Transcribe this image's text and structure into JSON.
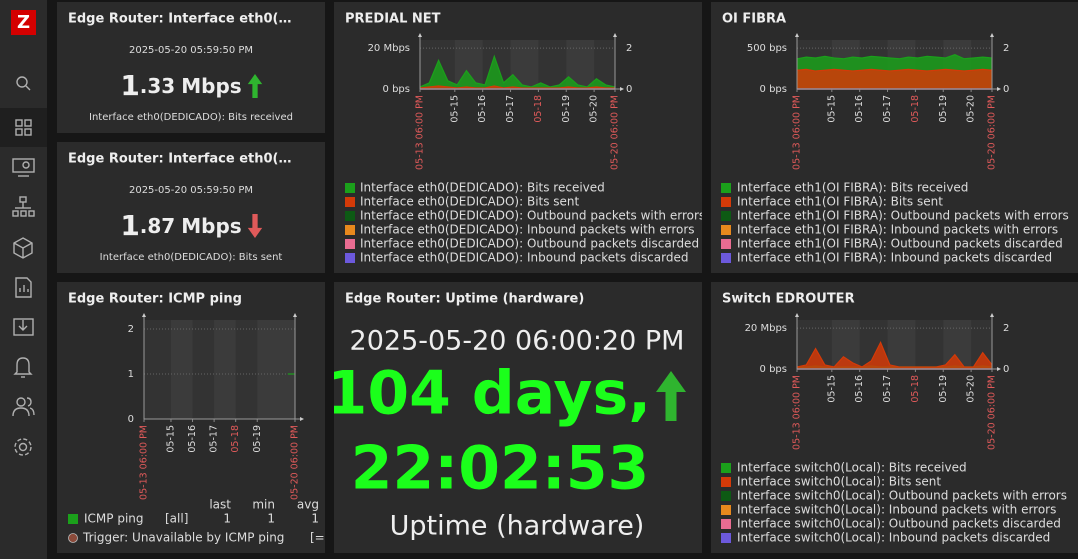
{
  "sidebar": {
    "logo": "Z"
  },
  "widgets": {
    "rx": {
      "title": "Edge Router: Interface eth0(…",
      "time": "2025-05-20 05:59:50 PM",
      "value_int": "1",
      "value_frac": ".33",
      "units": "Mbps",
      "trend_color": "#2fb52f",
      "trend": "up",
      "description": "Interface eth0(DEDICADO): Bits received"
    },
    "tx": {
      "title": "Edge Router: Interface eth0(…",
      "time": "2025-05-20 05:59:50 PM",
      "value_int": "1",
      "value_frac": ".87",
      "units": "Mbps",
      "trend_color": "#e05a5a",
      "trend": "down",
      "description": "Interface eth0(DEDICADO): Bits sent"
    },
    "icmp": {
      "title": "Edge Router: ICMP ping",
      "chart_data": {
        "type": "line",
        "x": [
          0,
          8,
          16,
          24,
          32,
          40,
          48,
          56,
          64,
          72,
          80,
          88,
          96,
          104,
          112,
          120,
          128,
          136,
          144,
          152,
          160,
          168
        ],
        "xlim": [
          0,
          168
        ],
        "xticks": [
          {
            "value": 0,
            "label": "05-13 06:00 PM"
          },
          {
            "value": 30,
            "label": "05-15"
          },
          {
            "value": 54,
            "label": "05-16"
          },
          {
            "value": 78,
            "label": "05-17"
          },
          {
            "value": 102,
            "label": "05-18"
          },
          {
            "value": 126,
            "label": "05-19"
          },
          {
            "value": 168,
            "label": "05-20 06:00 PM"
          }
        ],
        "xtick_colors": [
          "#e05a5a",
          "#dddddd",
          "#dddddd",
          "#dddddd",
          "#e05a5a",
          "#dddddd",
          "#e05a5a"
        ],
        "ylim": [
          0,
          2.2
        ],
        "yticks": [
          0,
          1,
          2
        ],
        "grid": true,
        "series": [
          {
            "name": "ICMP ping",
            "color": "#1ba01b",
            "values": [
              null,
              null,
              null,
              null,
              null,
              null,
              null,
              null,
              null,
              null,
              null,
              null,
              null,
              null,
              null,
              null,
              null,
              null,
              null,
              null,
              1,
              1
            ]
          }
        ]
      },
      "legend_table": {
        "headers": [
          "last",
          "min",
          "avg"
        ],
        "rows": [
          [
            "ICMP ping",
            "[all]",
            1,
            1,
            1
          ]
        ]
      },
      "trigger": {
        "name": "Trigger: Unavailable by ICMP ping",
        "cond": "[="
      }
    },
    "predial": {
      "title": "PREDIAL NET",
      "chart_data": {
        "type": "area",
        "x": [
          0,
          8,
          16,
          24,
          32,
          40,
          48,
          56,
          64,
          72,
          80,
          88,
          96,
          104,
          112,
          120,
          128,
          136,
          144,
          152,
          160,
          168
        ],
        "xlim": [
          0,
          168
        ],
        "xticks": [
          {
            "value": 0,
            "label": "05-13 06:00 PM"
          },
          {
            "value": 30,
            "label": "05-15"
          },
          {
            "value": 54,
            "label": "05-16"
          },
          {
            "value": 78,
            "label": "05-17"
          },
          {
            "value": 102,
            "label": "05-18"
          },
          {
            "value": 126,
            "label": "05-19"
          },
          {
            "value": 150,
            "label": "05-20"
          },
          {
            "value": 168,
            "label": "05-20 06:00 PM"
          }
        ],
        "xtick_colors": [
          "#e05a5a",
          "#dddddd",
          "#dddddd",
          "#dddddd",
          "#e05a5a",
          "#dddddd",
          "#dddddd",
          "#e05a5a"
        ],
        "ylim": [
          0,
          24
        ],
        "yticks": [
          {
            "value": 0,
            "label": "0 bps"
          },
          {
            "value": 20,
            "label": "20 Mbps"
          }
        ],
        "y2lim": [
          0,
          2.4
        ],
        "y2ticks": [
          0,
          2
        ],
        "grid": true,
        "series": [
          {
            "name": "Interface eth0(DEDICADO): Bits received",
            "color": "#1ba01b",
            "values": [
              1,
              3,
              14,
              4,
              2,
              9,
              3,
              2,
              16,
              3,
              7,
              2,
              1,
              3,
              1,
              2,
              6,
              2,
              1,
              5,
              2,
              1
            ]
          },
          {
            "name": "Interface eth0(DEDICADO): Bits sent",
            "color": "#d43a08",
            "values": [
              0.5,
              1,
              1.5,
              1,
              0.5,
              1,
              0.5,
              0.5,
              1.5,
              0.5,
              1,
              0.5,
              0.5,
              0.5,
              0.5,
              0.5,
              1,
              0.5,
              0.5,
              1,
              0.5,
              0.5
            ]
          },
          {
            "name": "Interface eth0(DEDICADO): Outbound packets with errors",
            "color": "#0d5a14",
            "axis": "y2",
            "values": [
              0,
              0,
              0,
              0,
              0,
              0,
              0,
              0,
              0,
              0,
              0,
              0,
              0,
              0,
              0,
              0,
              0,
              0,
              0,
              0,
              0,
              0
            ]
          },
          {
            "name": "Interface eth0(DEDICADO): Inbound packets with errors",
            "color": "#e8891d",
            "axis": "y2",
            "values": [
              0,
              0,
              0,
              0,
              0,
              0,
              0,
              0,
              0,
              0,
              0,
              0,
              0,
              0,
              0,
              0,
              0,
              0,
              0,
              0,
              0,
              0
            ]
          },
          {
            "name": "Interface eth0(DEDICADO): Outbound packets discarded",
            "color": "#e96c91",
            "axis": "y2",
            "values": [
              0,
              0,
              0,
              0,
              0,
              0,
              0,
              0,
              0,
              0,
              0,
              0,
              0,
              0,
              0,
              0,
              0,
              0,
              0,
              0,
              0,
              0
            ]
          },
          {
            "name": "Interface eth0(DEDICADO): Inbound packets discarded",
            "color": "#6c59dc",
            "axis": "y2",
            "values": [
              0,
              0,
              0,
              0,
              0,
              0,
              0,
              0,
              0,
              0,
              0,
              0,
              0,
              0,
              0,
              0,
              0,
              0,
              0,
              0,
              0,
              0
            ]
          }
        ]
      }
    },
    "uptime": {
      "title": "Edge Router: Uptime (hardware)",
      "time": "2025-05-20 06:00:20 PM",
      "days": "104 days,",
      "clock": "22:02:53",
      "description": "Uptime (hardware)",
      "trend": "up",
      "trend_color": "#2fb52f"
    },
    "oifibra": {
      "title": "OI FIBRA",
      "chart_data": {
        "type": "area",
        "x": [
          0,
          8,
          16,
          24,
          32,
          40,
          48,
          56,
          64,
          72,
          80,
          88,
          96,
          104,
          112,
          120,
          128,
          136,
          144,
          152,
          160,
          168
        ],
        "xlim": [
          0,
          168
        ],
        "xticks": [
          {
            "value": 0,
            "label": "05-13 06:00 PM"
          },
          {
            "value": 30,
            "label": "05-15"
          },
          {
            "value": 54,
            "label": "05-16"
          },
          {
            "value": 78,
            "label": "05-17"
          },
          {
            "value": 102,
            "label": "05-18"
          },
          {
            "value": 126,
            "label": "05-19"
          },
          {
            "value": 150,
            "label": "05-20"
          },
          {
            "value": 168,
            "label": "05-20 06:00 PM"
          }
        ],
        "xtick_colors": [
          "#e05a5a",
          "#dddddd",
          "#dddddd",
          "#dddddd",
          "#e05a5a",
          "#dddddd",
          "#dddddd",
          "#e05a5a"
        ],
        "ylim": [
          0,
          600
        ],
        "yticks": [
          {
            "value": 0,
            "label": "0 bps"
          },
          {
            "value": 500,
            "label": "500 bps"
          }
        ],
        "y2lim": [
          0,
          2.4
        ],
        "y2ticks": [
          0,
          2
        ],
        "grid": true,
        "series": [
          {
            "name": "Interface eth1(OI FIBRA): Bits received",
            "color": "#1ba01b",
            "values": [
              370,
              390,
              380,
              400,
              380,
              370,
              390,
              380,
              400,
              390,
              380,
              370,
              390,
              380,
              400,
              390,
              380,
              420,
              370,
              380,
              390,
              380
            ]
          },
          {
            "name": "Interface eth1(OI FIBRA): Bits sent",
            "color": "#d43a08",
            "values": [
              230,
              240,
              220,
              230,
              240,
              230,
              220,
              230,
              240,
              230,
              220,
              230,
              240,
              230,
              220,
              230,
              240,
              230,
              220,
              230,
              240,
              230
            ]
          },
          {
            "name": "Interface eth1(OI FIBRA): Outbound packets with errors",
            "color": "#0d5a14",
            "axis": "y2",
            "values": [
              0,
              0,
              0,
              0,
              0,
              0,
              0,
              0,
              0,
              0,
              0,
              0,
              0,
              0,
              0,
              0,
              0,
              0,
              0,
              0,
              0,
              0
            ]
          },
          {
            "name": "Interface eth1(OI FIBRA): Inbound packets with errors",
            "color": "#e8891d",
            "axis": "y2",
            "values": [
              0,
              0,
              0,
              0,
              0,
              0,
              0,
              0,
              0,
              0,
              0,
              0,
              0,
              0,
              0,
              0,
              0,
              0,
              0,
              0,
              0,
              0
            ]
          },
          {
            "name": "Interface eth1(OI FIBRA): Outbound packets discarded",
            "color": "#e96c91",
            "axis": "y2",
            "values": [
              0,
              0,
              0,
              0,
              0,
              0,
              0,
              0,
              0,
              0,
              0,
              0,
              0,
              0,
              0,
              0,
              0,
              0,
              0,
              0,
              0,
              0
            ]
          },
          {
            "name": "Interface eth1(OI FIBRA): Inbound packets discarded",
            "color": "#6c59dc",
            "axis": "y2",
            "values": [
              0,
              0,
              0,
              0,
              0,
              0,
              0,
              0,
              0,
              0,
              0,
              0,
              0,
              0,
              0,
              0,
              0,
              0,
              0,
              0,
              0,
              0
            ]
          }
        ]
      }
    },
    "switch": {
      "title": "Switch EDROUTER",
      "chart_data": {
        "type": "area",
        "x": [
          0,
          8,
          16,
          24,
          32,
          40,
          48,
          56,
          64,
          72,
          80,
          88,
          96,
          104,
          112,
          120,
          128,
          136,
          144,
          152,
          160,
          168
        ],
        "xlim": [
          0,
          168
        ],
        "xticks": [
          {
            "value": 0,
            "label": "05-13 06:00 PM"
          },
          {
            "value": 30,
            "label": "05-15"
          },
          {
            "value": 54,
            "label": "05-16"
          },
          {
            "value": 78,
            "label": "05-17"
          },
          {
            "value": 102,
            "label": "05-18"
          },
          {
            "value": 126,
            "label": "05-19"
          },
          {
            "value": 150,
            "label": "05-20"
          },
          {
            "value": 168,
            "label": "05-20 06:00 PM"
          }
        ],
        "xtick_colors": [
          "#e05a5a",
          "#dddddd",
          "#dddddd",
          "#dddddd",
          "#e05a5a",
          "#dddddd",
          "#dddddd",
          "#e05a5a"
        ],
        "ylim": [
          0,
          24
        ],
        "yticks": [
          {
            "value": 0,
            "label": "0 bps"
          },
          {
            "value": 20,
            "label": "20 Mbps"
          }
        ],
        "y2lim": [
          0,
          2.4
        ],
        "y2ticks": [
          0,
          2
        ],
        "grid": true,
        "series": [
          {
            "name": "Interface switch0(Local): Bits received",
            "color": "#1ba01b",
            "values": [
              1,
              1,
              1.5,
              1,
              1,
              1,
              1,
              1,
              1.5,
              1,
              1,
              1,
              1,
              1,
              1,
              1,
              1,
              1.5,
              1,
              1,
              1.5,
              1
            ]
          },
          {
            "name": "Interface switch0(Local): Bits sent",
            "color": "#d43a08",
            "values": [
              1,
              2,
              10,
              2,
              1,
              6,
              3,
              1,
              4,
              13,
              2,
              1,
              1,
              1,
              1,
              1,
              2,
              7,
              1,
              1,
              8,
              2
            ]
          },
          {
            "name": "Interface switch0(Local): Outbound packets with errors",
            "color": "#0d5a14",
            "axis": "y2",
            "values": [
              0,
              0,
              0,
              0,
              0,
              0,
              0,
              0,
              0,
              0,
              0,
              0,
              0,
              0,
              0,
              0,
              0,
              0,
              0,
              0,
              0,
              0
            ]
          },
          {
            "name": "Interface switch0(Local): Inbound packets with errors",
            "color": "#e8891d",
            "axis": "y2",
            "values": [
              0,
              0,
              0,
              0,
              0,
              0,
              0,
              0,
              0,
              0,
              0,
              0,
              0,
              0,
              0,
              0,
              0,
              0,
              0,
              0,
              0,
              0
            ]
          },
          {
            "name": "Interface switch0(Local): Outbound packets discarded",
            "color": "#e96c91",
            "axis": "y2",
            "values": [
              0,
              0,
              0,
              0,
              0,
              0,
              0,
              0,
              0,
              0,
              0,
              0,
              0,
              0,
              0,
              0,
              0,
              0,
              0,
              0,
              0,
              0
            ]
          },
          {
            "name": "Interface switch0(Local): Inbound packets discarded",
            "color": "#6c59dc",
            "axis": "y2",
            "values": [
              0,
              0,
              0,
              0,
              0,
              0,
              0,
              0,
              0,
              0,
              0,
              0,
              0,
              0,
              0,
              0,
              0,
              0,
              0,
              0,
              0,
              0
            ]
          }
        ]
      }
    }
  }
}
